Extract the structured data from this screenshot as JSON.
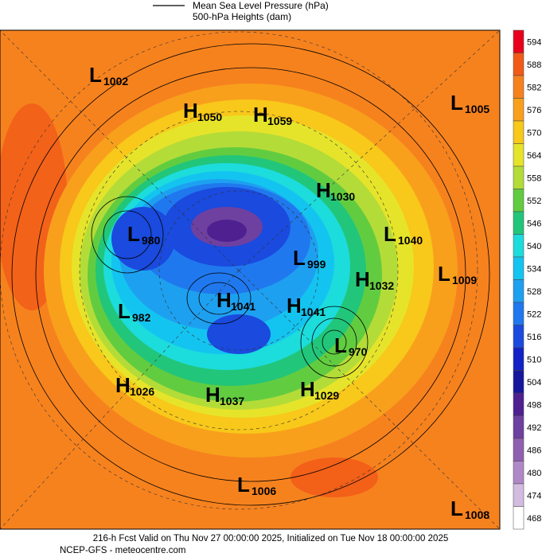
{
  "legend": {
    "line1": "Mean Sea Level Pressure (hPa)",
    "line2": "500-hPa Heights (dam)"
  },
  "colorbar": {
    "ticks": [
      594,
      588,
      582,
      576,
      570,
      564,
      558,
      552,
      546,
      540,
      534,
      528,
      522,
      516,
      510,
      504,
      498,
      492,
      486,
      480,
      474,
      468
    ],
    "colors": [
      "#e8001c",
      "#f25a18",
      "#f6821e",
      "#f8a01c",
      "#f8c81a",
      "#e6e42a",
      "#b4dc38",
      "#62cc40",
      "#22c67a",
      "#1cdcdc",
      "#14c4f0",
      "#1ea0f0",
      "#2078ee",
      "#1a4ade",
      "#1222c6",
      "#16169e",
      "#4e2090",
      "#6e40a0",
      "#9060b0",
      "#b088c8",
      "#d2bce2",
      "#ffffff"
    ]
  },
  "centers": [
    {
      "kind": "L",
      "value": "1002"
    },
    {
      "kind": "H",
      "value": "1050"
    },
    {
      "kind": "H",
      "value": "1059"
    },
    {
      "kind": "L",
      "value": "1005"
    },
    {
      "kind": "H",
      "value": "1030"
    },
    {
      "kind": "L",
      "value": "980"
    },
    {
      "kind": "L",
      "value": "1040"
    },
    {
      "kind": "L",
      "value": "999"
    },
    {
      "kind": "H",
      "value": "1032"
    },
    {
      "kind": "L",
      "value": "1009"
    },
    {
      "kind": "H",
      "value": "1041"
    },
    {
      "kind": "H",
      "value": "1041"
    },
    {
      "kind": "L",
      "value": "982"
    },
    {
      "kind": "L",
      "value": "970"
    },
    {
      "kind": "H",
      "value": "1026"
    },
    {
      "kind": "H",
      "value": "1037"
    },
    {
      "kind": "H",
      "value": "1029"
    },
    {
      "kind": "L",
      "value": "1006"
    },
    {
      "kind": "L",
      "value": "1008"
    }
  ],
  "footer": {
    "line1": "216-h Fcst Valid on Thu Nov 27 00:00:00 2025, Initialized on Tue Nov 18 00:00:00 2025",
    "line2": "NCEP-GFS  - meteocentre.com"
  }
}
